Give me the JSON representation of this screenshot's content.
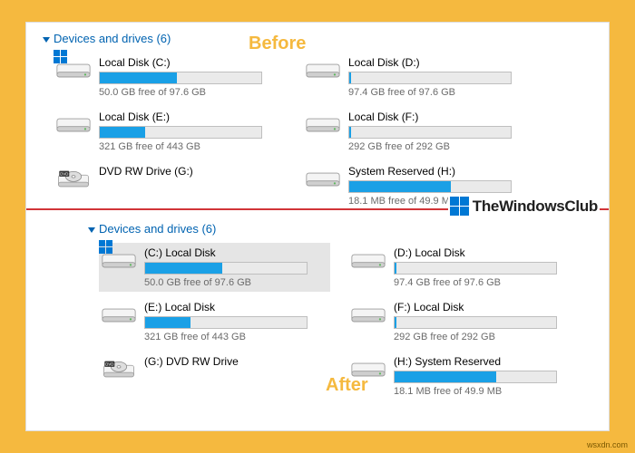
{
  "colors": {
    "outer_bg": "#f5b93f",
    "accent": "#0063b1",
    "bar_fill": "#1aa0e6",
    "bar_bg": "#eaeaea",
    "bar_border": "#bfbfbf",
    "separator": "#d13438",
    "label_color": "#f5b93f"
  },
  "labels": {
    "before": "Before",
    "after": "After"
  },
  "before": {
    "header": "Devices and drives (6)",
    "drives": [
      {
        "name": "Local Disk (C:)",
        "stats": "50.0 GB free of 97.6 GB",
        "fill_pct": 48,
        "has_bar": true,
        "win_badge": true,
        "icon": "disk"
      },
      {
        "name": "Local Disk (D:)",
        "stats": "97.4 GB free of 97.6 GB",
        "fill_pct": 1,
        "has_bar": true,
        "win_badge": false,
        "icon": "disk"
      },
      {
        "name": "Local Disk (E:)",
        "stats": "321 GB free of 443 GB",
        "fill_pct": 28,
        "has_bar": true,
        "win_badge": false,
        "icon": "disk"
      },
      {
        "name": "Local Disk (F:)",
        "stats": "292 GB free of 292 GB",
        "fill_pct": 1,
        "has_bar": true,
        "win_badge": false,
        "icon": "disk"
      },
      {
        "name": "DVD RW Drive (G:)",
        "stats": "",
        "fill_pct": 0,
        "has_bar": false,
        "win_badge": false,
        "icon": "dvd"
      },
      {
        "name": "System Reserved (H:)",
        "stats": "18.1 MB free of 49.9 MB",
        "fill_pct": 63,
        "has_bar": true,
        "win_badge": false,
        "icon": "disk"
      }
    ]
  },
  "after": {
    "header": "Devices and drives (6)",
    "drives": [
      {
        "name": "(C:) Local Disk",
        "stats": "50.0 GB free of 97.6 GB",
        "fill_pct": 48,
        "has_bar": true,
        "win_badge": true,
        "icon": "disk",
        "selected": true
      },
      {
        "name": "(D:) Local Disk",
        "stats": "97.4 GB free of 97.6 GB",
        "fill_pct": 1,
        "has_bar": true,
        "win_badge": false,
        "icon": "disk"
      },
      {
        "name": "(E:) Local Disk",
        "stats": "321 GB free of 443 GB",
        "fill_pct": 28,
        "has_bar": true,
        "win_badge": false,
        "icon": "disk"
      },
      {
        "name": "(F:) Local Disk",
        "stats": "292 GB free of 292 GB",
        "fill_pct": 1,
        "has_bar": true,
        "win_badge": false,
        "icon": "disk"
      },
      {
        "name": "(G:) DVD RW Drive",
        "stats": "",
        "fill_pct": 0,
        "has_bar": false,
        "win_badge": false,
        "icon": "dvd"
      },
      {
        "name": "(H:) System Reserved",
        "stats": "18.1 MB free of 49.9 MB",
        "fill_pct": 63,
        "has_bar": true,
        "win_badge": false,
        "icon": "disk"
      }
    ]
  },
  "logo": {
    "text": "TheWindowsClub",
    "squares": [
      "#0078d4",
      "#0078d4",
      "#0078d4",
      "#0078d4"
    ]
  },
  "watermark": "wsxdn.com"
}
